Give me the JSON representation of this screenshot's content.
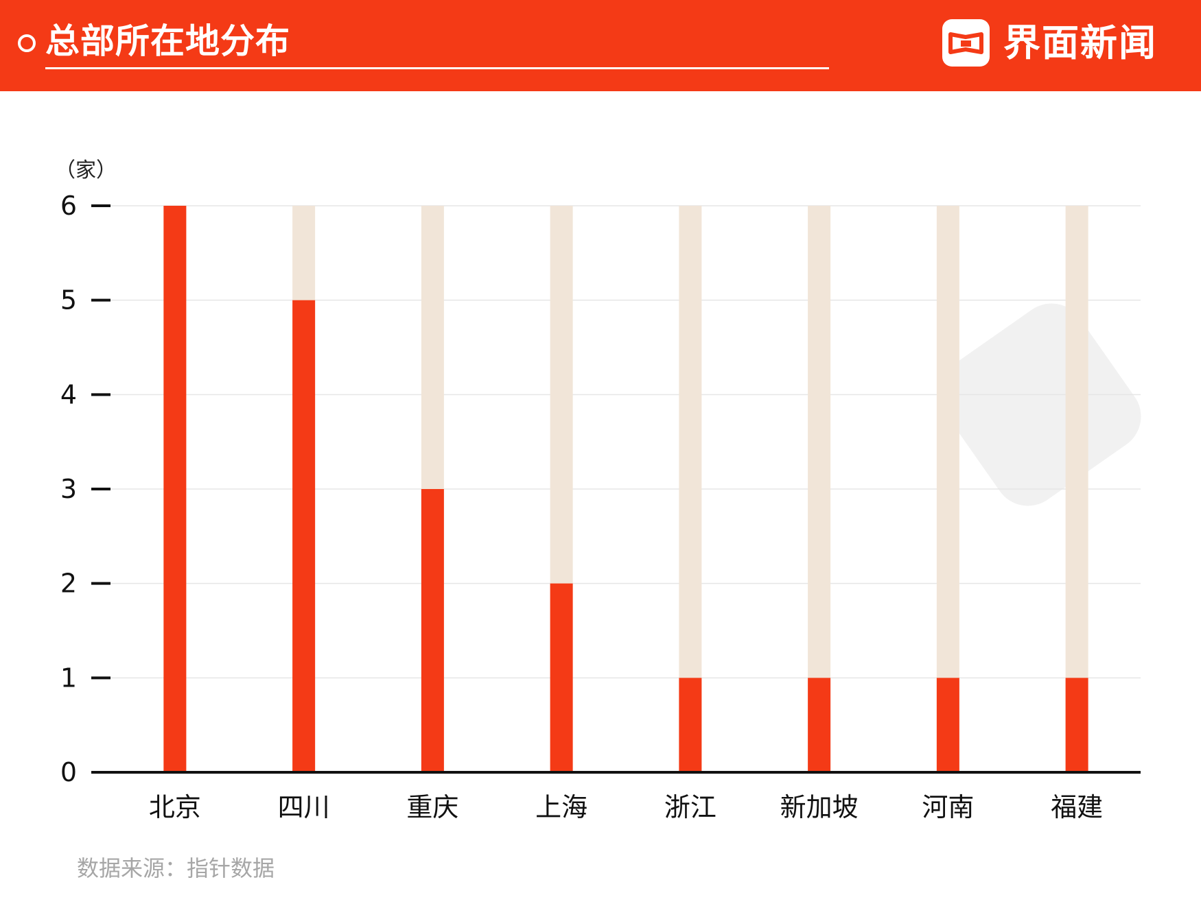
{
  "header": {
    "title": "总部所在地分布",
    "brand": "界面新闻",
    "brand_color": "#f43a16"
  },
  "chart_data": {
    "type": "bar",
    "y_unit": "（家）",
    "categories": [
      "北京",
      "四川",
      "重庆",
      "上海",
      "浙江",
      "新加坡",
      "河南",
      "福建"
    ],
    "values": [
      6,
      5,
      3,
      2,
      1,
      1,
      1,
      1
    ],
    "ylim": [
      0,
      6
    ],
    "yticks": [
      0,
      1,
      2,
      3,
      4,
      5,
      6
    ],
    "bar_color": "#f43a16",
    "track_color": "#f1e5d8",
    "grid": true,
    "legend": "none"
  },
  "footer": {
    "source": "数据来源：指针数据"
  }
}
